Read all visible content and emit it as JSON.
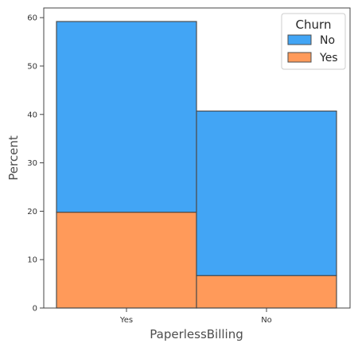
{
  "chart_data": {
    "type": "bar",
    "stacked": true,
    "categories": [
      "Yes",
      "No"
    ],
    "series": [
      {
        "name": "Yes",
        "values": [
          19.8,
          6.7
        ],
        "color": "#ff9a5a"
      },
      {
        "name": "No",
        "values": [
          39.4,
          34.0
        ],
        "color": "#42a5f5"
      }
    ],
    "xlabel": "PaperlessBilling",
    "ylabel": "Percent",
    "ylim": [
      0,
      62
    ],
    "yticks": [
      0,
      10,
      20,
      30,
      40,
      50,
      60
    ],
    "grid": false,
    "legend": {
      "title": "Churn",
      "placement": "top-right",
      "entries": [
        {
          "label": "No",
          "color": "#42a5f5"
        },
        {
          "label": "Yes",
          "color": "#ff9a5a"
        }
      ]
    }
  }
}
